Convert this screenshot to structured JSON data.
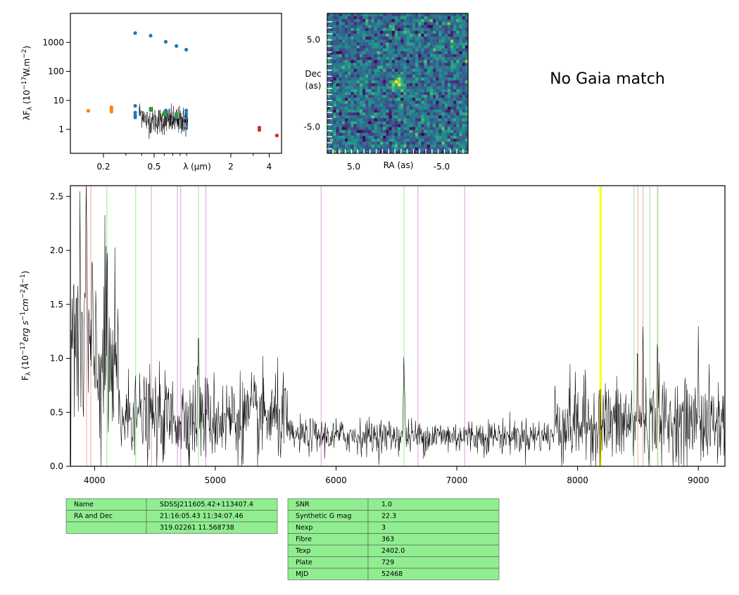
{
  "chart_data": [
    {
      "type": "scatter",
      "panel": "sed",
      "xlabel": "λ (μm)",
      "ylabel": "λF_λ (10^-17 W.m^-2)",
      "x_scale": "log",
      "y_scale": "log",
      "xlim": [
        0.11,
        5.0
      ],
      "ylim": [
        0.15,
        10000
      ],
      "x_ticks": [
        {
          "v": 0.2,
          "label": "0.2"
        },
        {
          "v": 0.5,
          "label": "0.5"
        },
        {
          "v": 2,
          "label": "2"
        },
        {
          "v": 4,
          "label": "4"
        }
      ],
      "y_ticks": [
        {
          "v": 1,
          "label": "1"
        },
        {
          "v": 10,
          "label": "10"
        },
        {
          "v": 100,
          "label": "100"
        },
        {
          "v": 1000,
          "label": "1000"
        }
      ],
      "series": [
        {
          "color": "#1f77b4",
          "points": [
            [
              0.355,
              2100
            ],
            [
              0.469,
              1700
            ],
            [
              0.617,
              1050
            ],
            [
              0.748,
              750
            ],
            [
              0.893,
              560
            ],
            [
              0.355,
              6.5
            ],
            [
              0.355,
              3.8
            ],
            [
              0.355,
              3.0
            ],
            [
              0.355,
              2.6
            ],
            [
              0.469,
              5.2
            ],
            [
              0.617,
              4.5
            ],
            [
              0.617,
              3.6
            ],
            [
              0.748,
              3.0
            ],
            [
              0.748,
              2.6
            ],
            [
              0.893,
              4.5
            ],
            [
              0.893,
              3.5
            ],
            [
              0.893,
              2.5
            ],
            [
              0.893,
              1.1
            ]
          ]
        },
        {
          "color": "#ff7f0e",
          "points": [
            [
              0.152,
              4.4
            ],
            [
              0.231,
              5.8
            ],
            [
              0.231,
              4.9
            ],
            [
              0.231,
              4.1
            ]
          ]
        },
        {
          "color": "#2ca02c",
          "points": [
            [
              0.47,
              5.2
            ],
            [
              0.47,
              4.6
            ],
            [
              0.6,
              3.8
            ],
            [
              0.6,
              3.2
            ],
            [
              0.75,
              3.4
            ],
            [
              0.75,
              2.9
            ]
          ]
        },
        {
          "color": "#d62728",
          "points": [
            [
              3.35,
              1.15
            ],
            [
              3.35,
              0.95
            ],
            [
              4.6,
              0.62
            ]
          ]
        }
      ],
      "spectrum_range": [
        0.38,
        0.92
      ]
    },
    {
      "type": "heatmap",
      "panel": "image",
      "xlabel": "RA (as)",
      "ylabel": "Dec\n(as)",
      "ylabel_lines": [
        "Dec",
        "(as)"
      ],
      "x_ticks": [
        {
          "v": 5.0,
          "label": "5.0"
        },
        {
          "v": -5.0,
          "label": "-5.0"
        }
      ],
      "y_ticks": [
        {
          "v": 5.0,
          "label": "5.0"
        },
        {
          "v": -5.0,
          "label": "-5.0"
        }
      ],
      "xlim": [
        8.0,
        -8.0
      ],
      "ylim": [
        -8.0,
        8.0
      ],
      "grid_size": 48,
      "source": {
        "ra": 0.0,
        "dec": 0.0
      },
      "colormap": "viridis"
    },
    {
      "type": "line",
      "panel": "spectrum",
      "xlabel": "",
      "ylabel": "F_λ (10^-17 erg s^-1 cm^-2 Å^-1)",
      "xlim": [
        3800,
        9220
      ],
      "ylim": [
        0.0,
        2.6
      ],
      "x_ticks": [
        4000,
        5000,
        6000,
        7000,
        8000,
        9000
      ],
      "y_ticks": [
        {
          "v": 0.0,
          "label": "0.0"
        },
        {
          "v": 0.5,
          "label": "0.5"
        },
        {
          "v": 1.0,
          "label": "1.0"
        },
        {
          "v": 1.5,
          "label": "1.5"
        },
        {
          "v": 2.0,
          "label": "2.0"
        },
        {
          "v": 2.5,
          "label": "2.5"
        }
      ],
      "features": [
        {
          "x": 3930,
          "peak": 2.4
        },
        {
          "x": 4100,
          "peak": 1.55
        },
        {
          "x": 4340,
          "peak": 0.95
        },
        {
          "x": 4861,
          "peak": 1.1
        },
        {
          "x": 6563,
          "peak": 1.0
        },
        {
          "x": 8498,
          "peak": 0.95
        },
        {
          "x": 8542,
          "peak": 1.05
        },
        {
          "x": 8662,
          "peak": 1.25
        },
        {
          "x": 9000,
          "peak": 1.05
        }
      ],
      "lines": [
        {
          "x": 3934,
          "color": "#f4a8a0"
        },
        {
          "x": 3969,
          "color": "#f4a8a0"
        },
        {
          "x": 4102,
          "color": "#90ee90"
        },
        {
          "x": 4341,
          "color": "#90ee90"
        },
        {
          "x": 4471,
          "color": "#dda0dd"
        },
        {
          "x": 4686,
          "color": "#dda0dd"
        },
        {
          "x": 4713,
          "color": "#dda0dd"
        },
        {
          "x": 4861,
          "color": "#90ee90"
        },
        {
          "x": 4922,
          "color": "#dda0dd"
        },
        {
          "x": 5876,
          "color": "#dda0dd"
        },
        {
          "x": 6563,
          "color": "#90ee90"
        },
        {
          "x": 6678,
          "color": "#dda0dd"
        },
        {
          "x": 7065,
          "color": "#dda0dd"
        },
        {
          "x": 8190,
          "color": "#ffff00"
        },
        {
          "x": 8467,
          "color": "#90ee90"
        },
        {
          "x": 8498,
          "color": "#f4a8a0"
        },
        {
          "x": 8542,
          "color": "#f4a8a0"
        },
        {
          "x": 8598,
          "color": "#90ee90"
        },
        {
          "x": 8662,
          "color": "#f4a8a0"
        },
        {
          "x": 8665,
          "color": "#90ee90"
        }
      ]
    }
  ],
  "gaia_text": "No Gaia match",
  "table_left": [
    [
      "Name",
      "SDSSJ211605.42+113407.4"
    ],
    [
      "RA and Dec",
      "21:16:05.43    11:34:07.46"
    ],
    [
      "",
      "319.02261    11.568738"
    ]
  ],
  "table_right": [
    [
      "SNR",
      "1.0"
    ],
    [
      "Synthetic G mag",
      "22.3"
    ],
    [
      "Nexp",
      "3"
    ],
    [
      "Fibre",
      "363"
    ],
    [
      "Texp",
      "2402.0"
    ],
    [
      "Plate",
      "729"
    ],
    [
      "MJD",
      "52468"
    ]
  ],
  "colors": {
    "table_bg": "#90ee90",
    "table_border": "#555555",
    "spectrum": "#000000"
  }
}
